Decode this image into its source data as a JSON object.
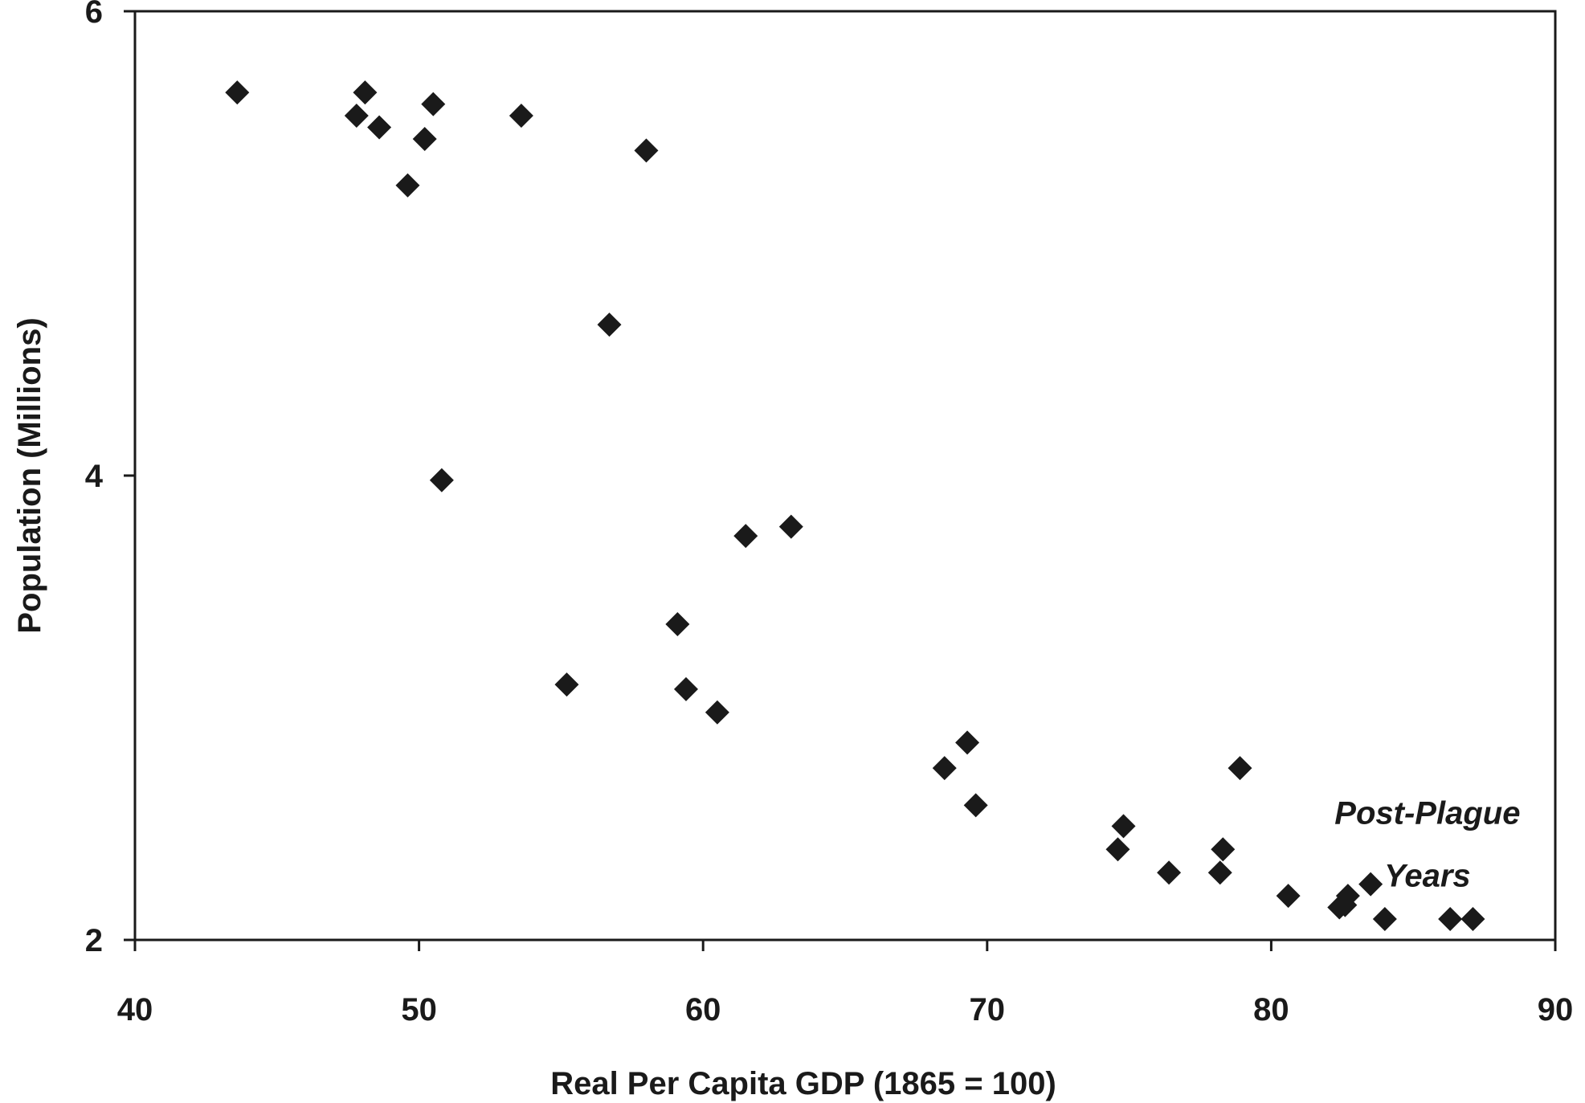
{
  "chart_data": {
    "type": "scatter",
    "title": "",
    "xlabel": "Real Per Capita GDP (1865 = 100)",
    "ylabel": "Population (Millions)",
    "xlim": [
      40,
      90
    ],
    "ylim": [
      2,
      6
    ],
    "x_ticks": [
      40,
      50,
      60,
      70,
      80,
      90
    ],
    "y_ticks": [
      2,
      4,
      6
    ],
    "x_tick_labels": [
      "40",
      "50",
      "60",
      "70",
      "80",
      "90"
    ],
    "y_tick_labels": [
      "2",
      "4",
      "6"
    ],
    "grid": false,
    "legend": "none",
    "marker": "diamond",
    "marker_color": "#1a1a1a",
    "annotations": [
      {
        "text": "Post-Plague",
        "x": 85.5,
        "y": 2.5
      },
      {
        "text": "Years",
        "x": 85.5,
        "y": 2.23
      }
    ],
    "points": [
      {
        "x": 43.6,
        "y": 5.65
      },
      {
        "x": 47.8,
        "y": 5.55
      },
      {
        "x": 48.1,
        "y": 5.65
      },
      {
        "x": 48.6,
        "y": 5.5
      },
      {
        "x": 49.6,
        "y": 5.25
      },
      {
        "x": 50.2,
        "y": 5.45
      },
      {
        "x": 50.5,
        "y": 5.6
      },
      {
        "x": 50.8,
        "y": 3.98
      },
      {
        "x": 53.6,
        "y": 5.55
      },
      {
        "x": 55.2,
        "y": 3.1
      },
      {
        "x": 56.7,
        "y": 4.65
      },
      {
        "x": 58.0,
        "y": 5.4
      },
      {
        "x": 59.1,
        "y": 3.36
      },
      {
        "x": 59.4,
        "y": 3.08
      },
      {
        "x": 60.5,
        "y": 2.98
      },
      {
        "x": 61.5,
        "y": 3.74
      },
      {
        "x": 63.1,
        "y": 3.78
      },
      {
        "x": 68.5,
        "y": 2.74
      },
      {
        "x": 69.3,
        "y": 2.85
      },
      {
        "x": 69.6,
        "y": 2.58
      },
      {
        "x": 74.6,
        "y": 2.39
      },
      {
        "x": 74.8,
        "y": 2.49
      },
      {
        "x": 76.4,
        "y": 2.29
      },
      {
        "x": 78.2,
        "y": 2.29
      },
      {
        "x": 78.3,
        "y": 2.39
      },
      {
        "x": 78.9,
        "y": 2.74
      },
      {
        "x": 80.6,
        "y": 2.19
      },
      {
        "x": 82.4,
        "y": 2.14
      },
      {
        "x": 82.6,
        "y": 2.15
      },
      {
        "x": 82.7,
        "y": 2.19
      },
      {
        "x": 83.5,
        "y": 2.24
      },
      {
        "x": 84.0,
        "y": 2.09
      },
      {
        "x": 86.3,
        "y": 2.09
      },
      {
        "x": 87.1,
        "y": 2.09
      }
    ]
  }
}
